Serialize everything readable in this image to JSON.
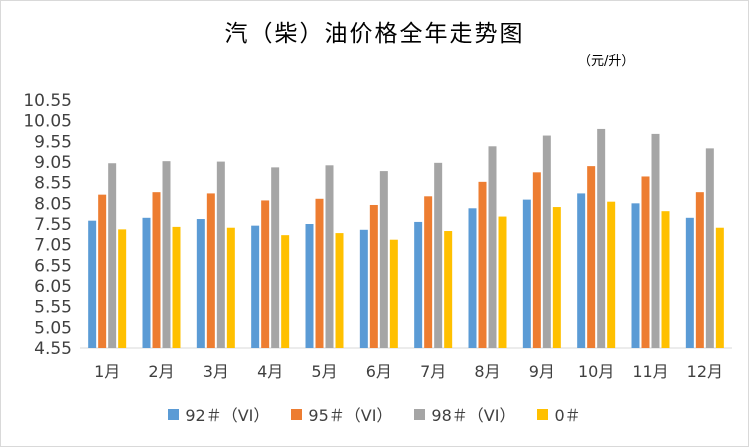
{
  "title": "汽（柴）油价格全年走势图",
  "unit": "（元/升）",
  "legend_items": [
    "92＃（VI）",
    "95＃（VI）",
    "98＃（VI）",
    "0＃"
  ],
  "chart_data": {
    "type": "bar",
    "title": "汽（柴）油价格全年走势图",
    "unit": "（元/升）",
    "categories": [
      "1月",
      "2月",
      "3月",
      "4月",
      "5月",
      "6月",
      "7月",
      "8月",
      "9月",
      "10月",
      "11月",
      "12月"
    ],
    "ylim": [
      4.55,
      10.55
    ],
    "yticks": [
      4.55,
      5.05,
      5.55,
      6.05,
      6.55,
      7.05,
      7.55,
      8.05,
      8.55,
      9.05,
      9.55,
      10.05,
      10.55
    ],
    "ytick_labels": [
      "4.55",
      "5.05",
      "5.55",
      "6.05",
      "6.55",
      "7.05",
      "7.55",
      "8.05",
      "8.55",
      "9.05",
      "9.55",
      "10.05",
      "10.55"
    ],
    "grid": false,
    "legend_position": "bottom",
    "series": [
      {
        "name": "92＃（VI）",
        "color": "#5b9bd5",
        "values": [
          7.63,
          7.7,
          7.67,
          7.51,
          7.55,
          7.41,
          7.6,
          7.93,
          8.14,
          8.29,
          8.05,
          7.7
        ]
      },
      {
        "name": "95＃（VI）",
        "color": "#ed7d31",
        "values": [
          8.26,
          8.32,
          8.29,
          8.12,
          8.16,
          8.01,
          8.22,
          8.57,
          8.8,
          8.95,
          8.7,
          8.32
        ]
      },
      {
        "name": "98＃（VI）",
        "color": "#a5a5a5",
        "values": [
          9.02,
          9.07,
          9.06,
          8.92,
          8.97,
          8.83,
          9.03,
          9.43,
          9.69,
          9.85,
          9.73,
          9.38
        ]
      },
      {
        "name": "0＃",
        "color": "#ffc000",
        "values": [
          7.42,
          7.48,
          7.46,
          7.28,
          7.33,
          7.17,
          7.38,
          7.73,
          7.96,
          8.09,
          7.86,
          7.46
        ]
      }
    ]
  }
}
